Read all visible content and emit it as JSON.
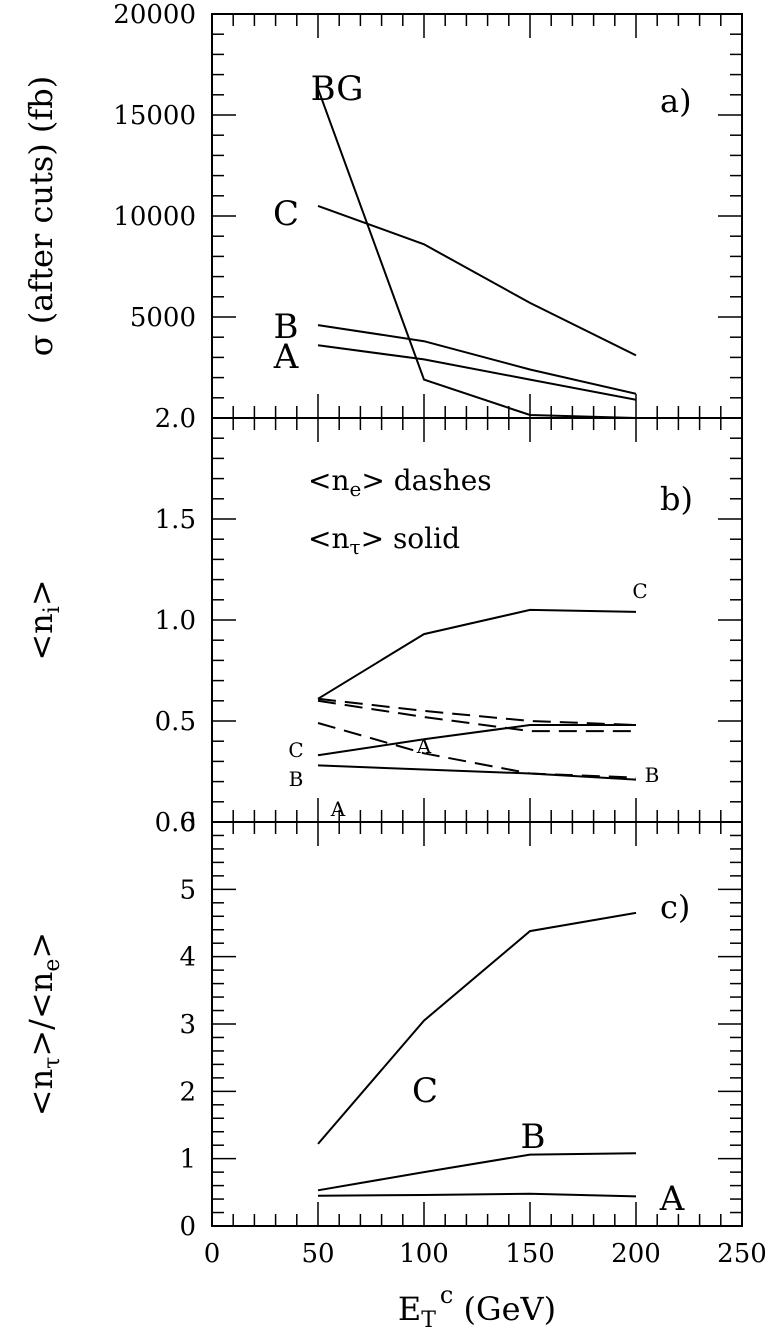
{
  "figure": {
    "x_axis": {
      "label": "E_T^c (GeV)",
      "label_parts": {
        "main": "E",
        "sub": "T",
        "sup": "c",
        "tail": " (GeV)"
      },
      "range": [
        0,
        250
      ],
      "ticks": [
        0,
        50,
        100,
        150,
        200,
        250
      ],
      "tick_labels": [
        "0",
        "50",
        "100",
        "150",
        "200",
        "250"
      ]
    }
  },
  "chart_data": [
    {
      "panel_tag": "a)",
      "type": "line",
      "ylabel": "σ (after cuts) (fb)",
      "ylim": [
        0,
        20000
      ],
      "yticks": [
        0,
        5000,
        10000,
        15000,
        20000
      ],
      "ytick_labels": [
        "",
        "5000",
        "10000",
        "15000",
        "20000"
      ],
      "x": [
        50,
        100,
        150,
        200
      ],
      "series": [
        {
          "name": "BG",
          "style": "solid",
          "values": [
            16300,
            1900,
            150,
            0
          ]
        },
        {
          "name": "C",
          "style": "solid",
          "values": [
            10500,
            8600,
            5700,
            3100
          ]
        },
        {
          "name": "B",
          "style": "solid",
          "values": [
            4600,
            3800,
            2400,
            1200
          ]
        },
        {
          "name": "A",
          "style": "solid",
          "values": [
            3600,
            2900,
            1900,
            900
          ]
        }
      ]
    },
    {
      "panel_tag": "b)",
      "type": "line",
      "ylabel": "<n_i>",
      "ylim": [
        0,
        2.0
      ],
      "yticks": [
        0,
        0.5,
        1.0,
        1.5,
        2.0
      ],
      "ytick_labels": [
        "0.0",
        "0.5",
        "1.0",
        "1.5",
        "2.0"
      ],
      "legend": [
        {
          "lhs": "<n",
          "sub": "e",
          "rhs": "> dashes"
        },
        {
          "lhs": "<n",
          "sub": "τ",
          "rhs": "> solid"
        }
      ],
      "x": [
        50,
        100,
        150,
        200
      ],
      "series": [
        {
          "name": "C",
          "style": "solid",
          "values": [
            0.61,
            0.93,
            1.05,
            1.04
          ]
        },
        {
          "name": "B",
          "style": "solid",
          "values": [
            0.33,
            0.41,
            0.48,
            0.48
          ]
        },
        {
          "name": "A",
          "style": "solid",
          "values": [
            0.28,
            0.26,
            0.24,
            0.21
          ]
        },
        {
          "name": "A",
          "style": "dashed",
          "values": [
            0.61,
            0.55,
            0.5,
            0.48
          ]
        },
        {
          "name": "B",
          "style": "dashed",
          "values": [
            0.6,
            0.52,
            0.45,
            0.45
          ]
        },
        {
          "name": "C",
          "style": "dashed",
          "values": [
            0.49,
            0.34,
            0.24,
            0.22
          ]
        }
      ]
    },
    {
      "panel_tag": "c)",
      "type": "line",
      "ylabel": "<n_τ>/<n_e>",
      "ylim": [
        0,
        6
      ],
      "yticks": [
        0,
        1,
        2,
        3,
        4,
        5,
        6
      ],
      "ytick_labels": [
        "0",
        "1",
        "2",
        "3",
        "4",
        "5",
        "6"
      ],
      "x": [
        50,
        100,
        150,
        200
      ],
      "series": [
        {
          "name": "C",
          "style": "solid",
          "values": [
            1.22,
            3.05,
            4.38,
            4.65
          ]
        },
        {
          "name": "B",
          "style": "solid",
          "values": [
            0.53,
            0.8,
            1.06,
            1.08
          ]
        },
        {
          "name": "A",
          "style": "solid",
          "values": [
            0.45,
            0.46,
            0.48,
            0.44
          ]
        }
      ]
    }
  ]
}
